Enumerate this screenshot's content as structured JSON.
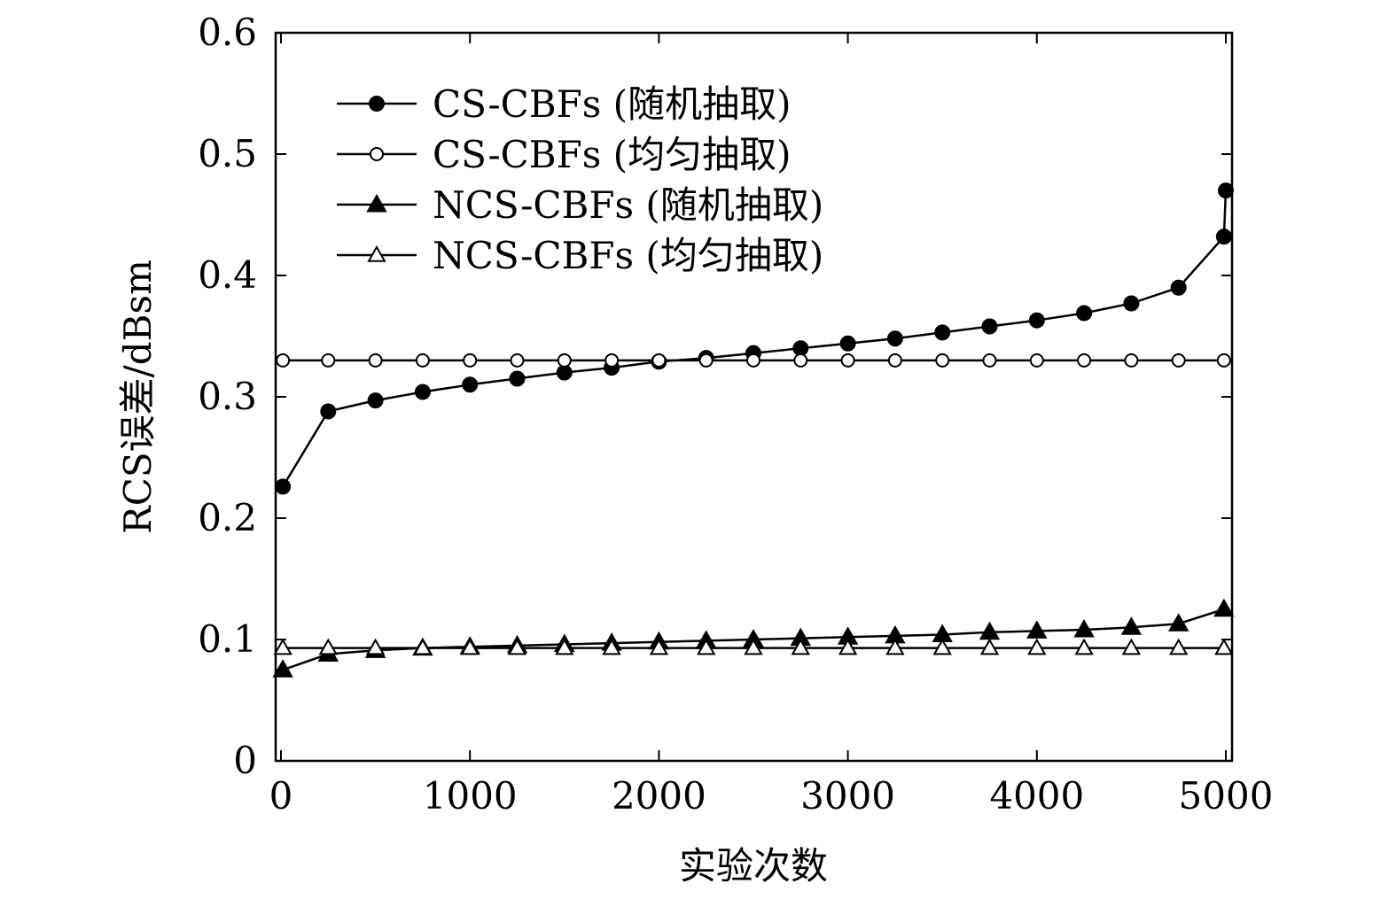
{
  "chart_data": {
    "type": "line",
    "xlabel": "实验次数",
    "ylabel": "RCS误差/dBsm",
    "xlim": [
      0,
      5000
    ],
    "ylim": [
      0,
      0.6
    ],
    "xticks": [
      "0",
      "1000",
      "2000",
      "3000",
      "4000",
      "5000"
    ],
    "yticks": [
      "0",
      "0.1",
      "0.2",
      "0.3",
      "0.4",
      "0.5",
      "0.6"
    ],
    "grid": false,
    "legend_position": "top-left",
    "series": [
      {
        "name": "CS-CBFs (随机抽取)",
        "marker": "filled-circle",
        "x": [
          10,
          250,
          500,
          750,
          1000,
          1250,
          1500,
          1750,
          2000,
          2250,
          2500,
          2750,
          3000,
          3250,
          3500,
          3750,
          4000,
          4250,
          4500,
          4750,
          4990,
          5000
        ],
        "y": [
          0.226,
          0.288,
          0.297,
          0.304,
          0.31,
          0.315,
          0.32,
          0.324,
          0.329,
          0.332,
          0.336,
          0.34,
          0.344,
          0.348,
          0.353,
          0.358,
          0.363,
          0.369,
          0.377,
          0.39,
          0.432,
          0.47
        ]
      },
      {
        "name": "CS-CBFs (均匀抽取)",
        "marker": "open-circle",
        "x": [
          10,
          250,
          500,
          750,
          1000,
          1250,
          1500,
          1750,
          2000,
          2250,
          2500,
          2750,
          3000,
          3250,
          3500,
          3750,
          4000,
          4250,
          4500,
          4750,
          4990
        ],
        "y": [
          0.33,
          0.33,
          0.33,
          0.33,
          0.33,
          0.33,
          0.33,
          0.33,
          0.33,
          0.33,
          0.33,
          0.33,
          0.33,
          0.33,
          0.33,
          0.33,
          0.33,
          0.33,
          0.33,
          0.33,
          0.33
        ]
      },
      {
        "name": "NCS-CBFs (随机抽取)",
        "marker": "filled-triangle",
        "x": [
          10,
          250,
          500,
          750,
          1000,
          1250,
          1500,
          1750,
          2000,
          2250,
          2500,
          2750,
          3000,
          3250,
          3500,
          3750,
          4000,
          4250,
          4500,
          4750,
          4990
        ],
        "y": [
          0.075,
          0.088,
          0.091,
          0.093,
          0.094,
          0.095,
          0.096,
          0.097,
          0.098,
          0.099,
          0.1,
          0.101,
          0.102,
          0.103,
          0.104,
          0.106,
          0.107,
          0.108,
          0.11,
          0.113,
          0.125
        ]
      },
      {
        "name": "NCS-CBFs (均匀抽取)",
        "marker": "open-triangle",
        "x": [
          10,
          250,
          500,
          750,
          1000,
          1250,
          1500,
          1750,
          2000,
          2250,
          2500,
          2750,
          3000,
          3250,
          3500,
          3750,
          4000,
          4250,
          4500,
          4750,
          4990
        ],
        "y": [
          0.093,
          0.093,
          0.093,
          0.093,
          0.093,
          0.093,
          0.093,
          0.093,
          0.093,
          0.093,
          0.093,
          0.093,
          0.093,
          0.093,
          0.093,
          0.093,
          0.093,
          0.093,
          0.093,
          0.093,
          0.093
        ]
      }
    ]
  }
}
